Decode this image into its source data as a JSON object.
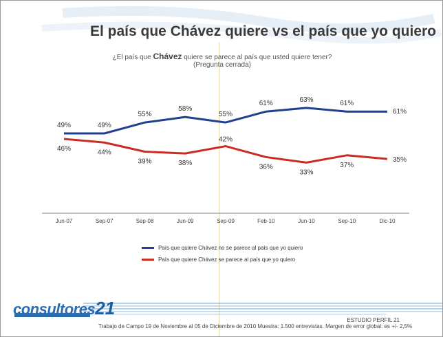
{
  "title": "El país que Chávez quiere vs el país que yo quiero",
  "question": {
    "prefix": "¿El país que ",
    "emphasis": "Chávez",
    "suffix": " quiere se parece al país que usted quiere tener?",
    "subtitle": "(Pregunta cerrada)"
  },
  "chart_data": {
    "type": "line",
    "categories": [
      "Jun-07",
      "Sep-07",
      "Sep-08",
      "Jun-09",
      "Sep-09",
      "Feb-10",
      "Jun-10",
      "Sep-10",
      "Dic-10"
    ],
    "series": [
      {
        "name": "País que quiere Chávez no se parece al país que yo quiero",
        "color": "#1f3f8f",
        "values": [
          49,
          49,
          55,
          58,
          55,
          61,
          63,
          61,
          61
        ],
        "labels": [
          "49%",
          "49%",
          "55%",
          "58%",
          "55%",
          "61%",
          "63%",
          "61%",
          "61%"
        ]
      },
      {
        "name": "País que quiere Chávez se parece al país que yo quiero",
        "color": "#cc2b22",
        "values": [
          46,
          44,
          39,
          38,
          42,
          36,
          33,
          37,
          35
        ],
        "labels": [
          "46%",
          "44%",
          "39%",
          "38%",
          "42%",
          "36%",
          "33%",
          "37%",
          "35%"
        ]
      }
    ],
    "ylim": [
      0,
      80
    ],
    "grid": false,
    "legend_placement": "bottom"
  },
  "logo": {
    "name": "consultores",
    "number": "21"
  },
  "studio": "ESTUDIO PERFIL 21",
  "footnote": "Trabajo de Campo 19 de Noviembre al 05 de Diciembre de 2010 Muestra: 1.500 entrevistas. Margen de error global: es +/- 2,5%"
}
